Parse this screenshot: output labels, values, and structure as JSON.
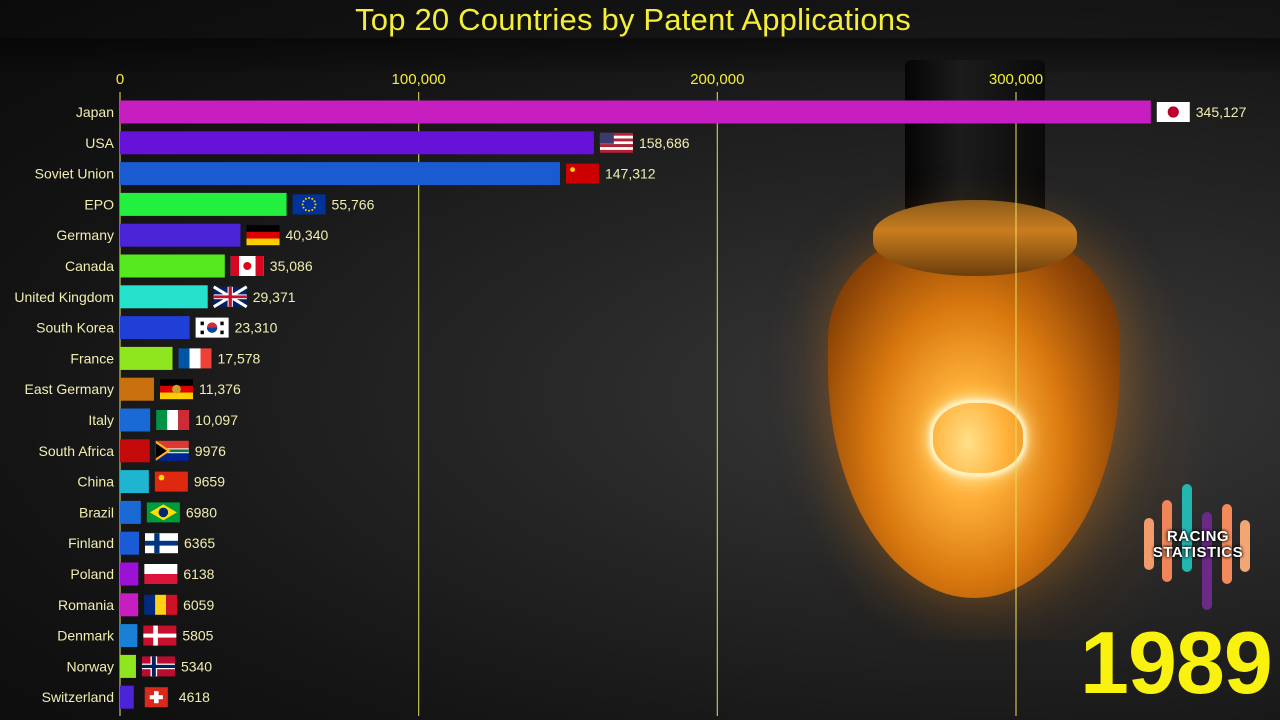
{
  "chart_data": {
    "type": "bar",
    "orientation": "horizontal",
    "title": "Top 20 Countries by Patent Applications",
    "xlim": [
      0,
      350000
    ],
    "x_ticks": [
      "0",
      "100,000",
      "200,000",
      "300,000"
    ],
    "x_tick_values": [
      0,
      100000,
      200000,
      300000
    ],
    "grid": true,
    "categories": [
      "Japan",
      "USA",
      "Soviet Union",
      "EPO",
      "Germany",
      "Canada",
      "United Kingdom",
      "South Korea",
      "France",
      "East Germany",
      "Italy",
      "South Africa",
      "China",
      "Brazil",
      "Finland",
      "Poland",
      "Romania",
      "Denmark",
      "Norway",
      "Switzerland"
    ],
    "values": [
      345127,
      158686,
      147312,
      55766,
      40340,
      35086,
      29371,
      23310,
      17578,
      11376,
      10097,
      9976,
      9659,
      6980,
      6365,
      6138,
      6059,
      5805,
      5340,
      4618
    ],
    "value_labels": [
      "345,127",
      "158,686",
      "147,312",
      "55,766",
      "40,340",
      "35,086",
      "29,371",
      "23,310",
      "17,578",
      "11,376",
      "10,097",
      "9976",
      "9659",
      "6980",
      "6365",
      "6138",
      "6059",
      "5805",
      "5340",
      "4618"
    ],
    "bar_colors": [
      "#c71ec1",
      "#6612d8",
      "#1a5bd1",
      "#23ef3f",
      "#4a24d6",
      "#54ea1f",
      "#26e2cc",
      "#1f3fd6",
      "#8fe61e",
      "#c9700f",
      "#1a6ad6",
      "#c40a0a",
      "#1fb5d0",
      "#1a6ad6",
      "#1a5bd6",
      "#9b12d6",
      "#c71ec1",
      "#1a80d6",
      "#8fe61e",
      "#4a24d6"
    ],
    "flags": [
      "japan-flag",
      "usa-flag",
      "soviet-union-flag",
      "eu-flag",
      "germany-flag",
      "canada-flag",
      "uk-flag",
      "south-korea-flag",
      "france-flag",
      "east-germany-flag",
      "italy-flag",
      "south-africa-flag",
      "china-flag",
      "brazil-flag",
      "finland-flag",
      "poland-flag",
      "romania-flag",
      "denmark-flag",
      "norway-flag",
      "switzerland-flag"
    ]
  },
  "year": "1989",
  "logo": {
    "line1": "RACING",
    "line2": "STATISTICS"
  },
  "colors": {
    "text": "#f4ee3a",
    "label": "#f1eeb0",
    "grid": "#e6df5a"
  }
}
